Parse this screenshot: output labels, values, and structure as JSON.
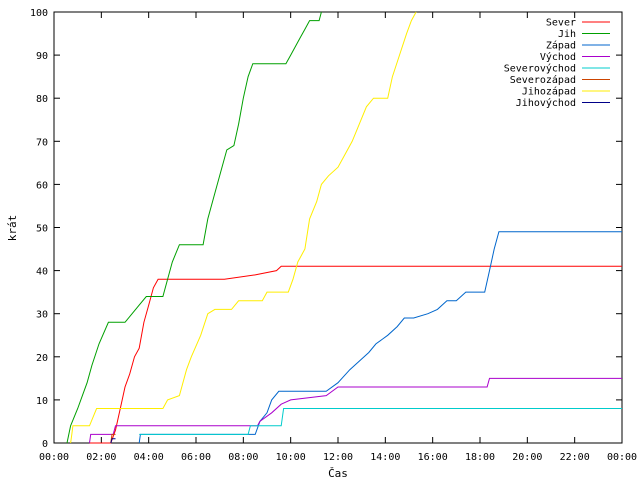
{
  "chart_data": {
    "type": "line",
    "xlabel": "Čas",
    "ylabel": "krát",
    "xlim": [
      0,
      24
    ],
    "ylim": [
      0,
      100
    ],
    "x_ticks": [
      0,
      2,
      4,
      6,
      8,
      10,
      12,
      14,
      16,
      18,
      20,
      22,
      24
    ],
    "x_tick_labels": [
      "00:00",
      "02:00",
      "04:00",
      "06:00",
      "08:00",
      "10:00",
      "12:00",
      "14:00",
      "16:00",
      "18:00",
      "20:00",
      "22:00",
      "00:00"
    ],
    "y_ticks": [
      0,
      10,
      20,
      30,
      40,
      50,
      60,
      70,
      80,
      90,
      100
    ],
    "y_tick_labels": [
      "0",
      "10",
      "20",
      "30",
      "40",
      "50",
      "60",
      "70",
      "80",
      "90",
      "100"
    ],
    "grid": false,
    "legend_position": "top-right",
    "series": [
      {
        "name": "Sever",
        "color": "#ff0000",
        "points": [
          [
            1.5,
            0
          ],
          [
            2.4,
            0
          ],
          [
            2.6,
            3
          ],
          [
            2.8,
            8
          ],
          [
            3.0,
            13
          ],
          [
            3.2,
            16
          ],
          [
            3.4,
            20
          ],
          [
            3.6,
            22
          ],
          [
            3.8,
            28
          ],
          [
            4.0,
            32
          ],
          [
            4.2,
            36
          ],
          [
            4.4,
            38
          ],
          [
            5.0,
            38
          ],
          [
            7.2,
            38
          ],
          [
            8.5,
            39
          ],
          [
            9.4,
            40
          ],
          [
            9.6,
            41
          ],
          [
            12.0,
            41
          ],
          [
            24,
            41
          ]
        ]
      },
      {
        "name": "Jih",
        "color": "#00a000",
        "points": [
          [
            0.55,
            0
          ],
          [
            0.7,
            4
          ],
          [
            1.0,
            8
          ],
          [
            1.2,
            11
          ],
          [
            1.4,
            14
          ],
          [
            1.6,
            18
          ],
          [
            1.9,
            23
          ],
          [
            2.3,
            28
          ],
          [
            3.0,
            28
          ],
          [
            3.3,
            30
          ],
          [
            3.6,
            32
          ],
          [
            3.9,
            34
          ],
          [
            4.6,
            34
          ],
          [
            4.8,
            38
          ],
          [
            5.0,
            42
          ],
          [
            5.3,
            46
          ],
          [
            6.3,
            46
          ],
          [
            6.5,
            52
          ],
          [
            6.8,
            58
          ],
          [
            7.1,
            64
          ],
          [
            7.3,
            68
          ],
          [
            7.6,
            69
          ],
          [
            7.8,
            74
          ],
          [
            8.0,
            80
          ],
          [
            8.2,
            85
          ],
          [
            8.4,
            88
          ],
          [
            9.8,
            88
          ],
          [
            10.0,
            90
          ],
          [
            10.2,
            92
          ],
          [
            10.4,
            94
          ],
          [
            10.6,
            96
          ],
          [
            10.8,
            98
          ],
          [
            11.2,
            98
          ],
          [
            11.3,
            100
          ]
        ]
      },
      {
        "name": "Západ",
        "color": "#0066cc",
        "points": [
          [
            3.6,
            0
          ],
          [
            3.65,
            2
          ],
          [
            8.5,
            2
          ],
          [
            8.7,
            5
          ],
          [
            9.0,
            7
          ],
          [
            9.2,
            10
          ],
          [
            9.5,
            12
          ],
          [
            11.5,
            12
          ],
          [
            12.0,
            14
          ],
          [
            12.5,
            17
          ],
          [
            12.9,
            19
          ],
          [
            13.3,
            21
          ],
          [
            13.6,
            23
          ],
          [
            14.1,
            25
          ],
          [
            14.5,
            27
          ],
          [
            14.8,
            29
          ],
          [
            15.2,
            29
          ],
          [
            15.8,
            30
          ],
          [
            16.2,
            31
          ],
          [
            16.6,
            33
          ],
          [
            17.0,
            33
          ],
          [
            17.4,
            35
          ],
          [
            18.2,
            35
          ],
          [
            18.4,
            40
          ],
          [
            18.6,
            45
          ],
          [
            18.8,
            49
          ],
          [
            19.0,
            49
          ],
          [
            24,
            49
          ]
        ]
      },
      {
        "name": "Východ",
        "color": "#aa00cc",
        "points": [
          [
            1.5,
            0
          ],
          [
            1.55,
            2
          ],
          [
            2.5,
            2
          ],
          [
            2.6,
            4
          ],
          [
            8.6,
            4
          ],
          [
            8.7,
            5
          ],
          [
            9.2,
            7
          ],
          [
            9.6,
            9
          ],
          [
            10.0,
            10
          ],
          [
            11.5,
            11
          ],
          [
            12.0,
            13
          ],
          [
            18.3,
            13
          ],
          [
            18.4,
            15
          ],
          [
            24,
            15
          ]
        ]
      },
      {
        "name": "Severovýchod",
        "color": "#00cccc",
        "points": [
          [
            3.6,
            2
          ],
          [
            8.2,
            2
          ],
          [
            8.3,
            4
          ],
          [
            9.6,
            4
          ],
          [
            9.7,
            8
          ],
          [
            24,
            8
          ]
        ]
      },
      {
        "name": "Severozápad",
        "color": "#cc4400",
        "points": [
          [
            2.4,
            0
          ],
          [
            2.45,
            2
          ],
          [
            2.6,
            2
          ]
        ]
      },
      {
        "name": "Jihozápad",
        "color": "#ffee00",
        "points": [
          [
            0.7,
            0
          ],
          [
            0.75,
            2
          ],
          [
            0.8,
            4
          ],
          [
            1.5,
            4
          ],
          [
            1.8,
            8
          ],
          [
            4.6,
            8
          ],
          [
            4.8,
            10
          ],
          [
            5.3,
            11
          ],
          [
            5.6,
            17
          ],
          [
            5.8,
            20
          ],
          [
            6.2,
            25
          ],
          [
            6.5,
            30
          ],
          [
            6.8,
            31
          ],
          [
            7.5,
            31
          ],
          [
            7.8,
            33
          ],
          [
            8.8,
            33
          ],
          [
            9.0,
            35
          ],
          [
            9.9,
            35
          ],
          [
            10.1,
            38
          ],
          [
            10.3,
            42
          ],
          [
            10.6,
            45
          ],
          [
            10.8,
            52
          ],
          [
            11.1,
            56
          ],
          [
            11.3,
            60
          ],
          [
            11.6,
            62
          ],
          [
            12.0,
            64
          ],
          [
            12.3,
            67
          ],
          [
            12.6,
            70
          ],
          [
            12.9,
            74
          ],
          [
            13.2,
            78
          ],
          [
            13.5,
            80
          ],
          [
            14.1,
            80
          ],
          [
            14.3,
            85
          ],
          [
            14.6,
            90
          ],
          [
            14.9,
            95
          ],
          [
            15.1,
            98
          ],
          [
            15.3,
            100
          ]
        ]
      },
      {
        "name": "Jihovýchod",
        "color": "#000088",
        "points": [
          [
            2.4,
            0
          ],
          [
            2.45,
            1
          ],
          [
            2.6,
            1
          ]
        ]
      }
    ]
  }
}
